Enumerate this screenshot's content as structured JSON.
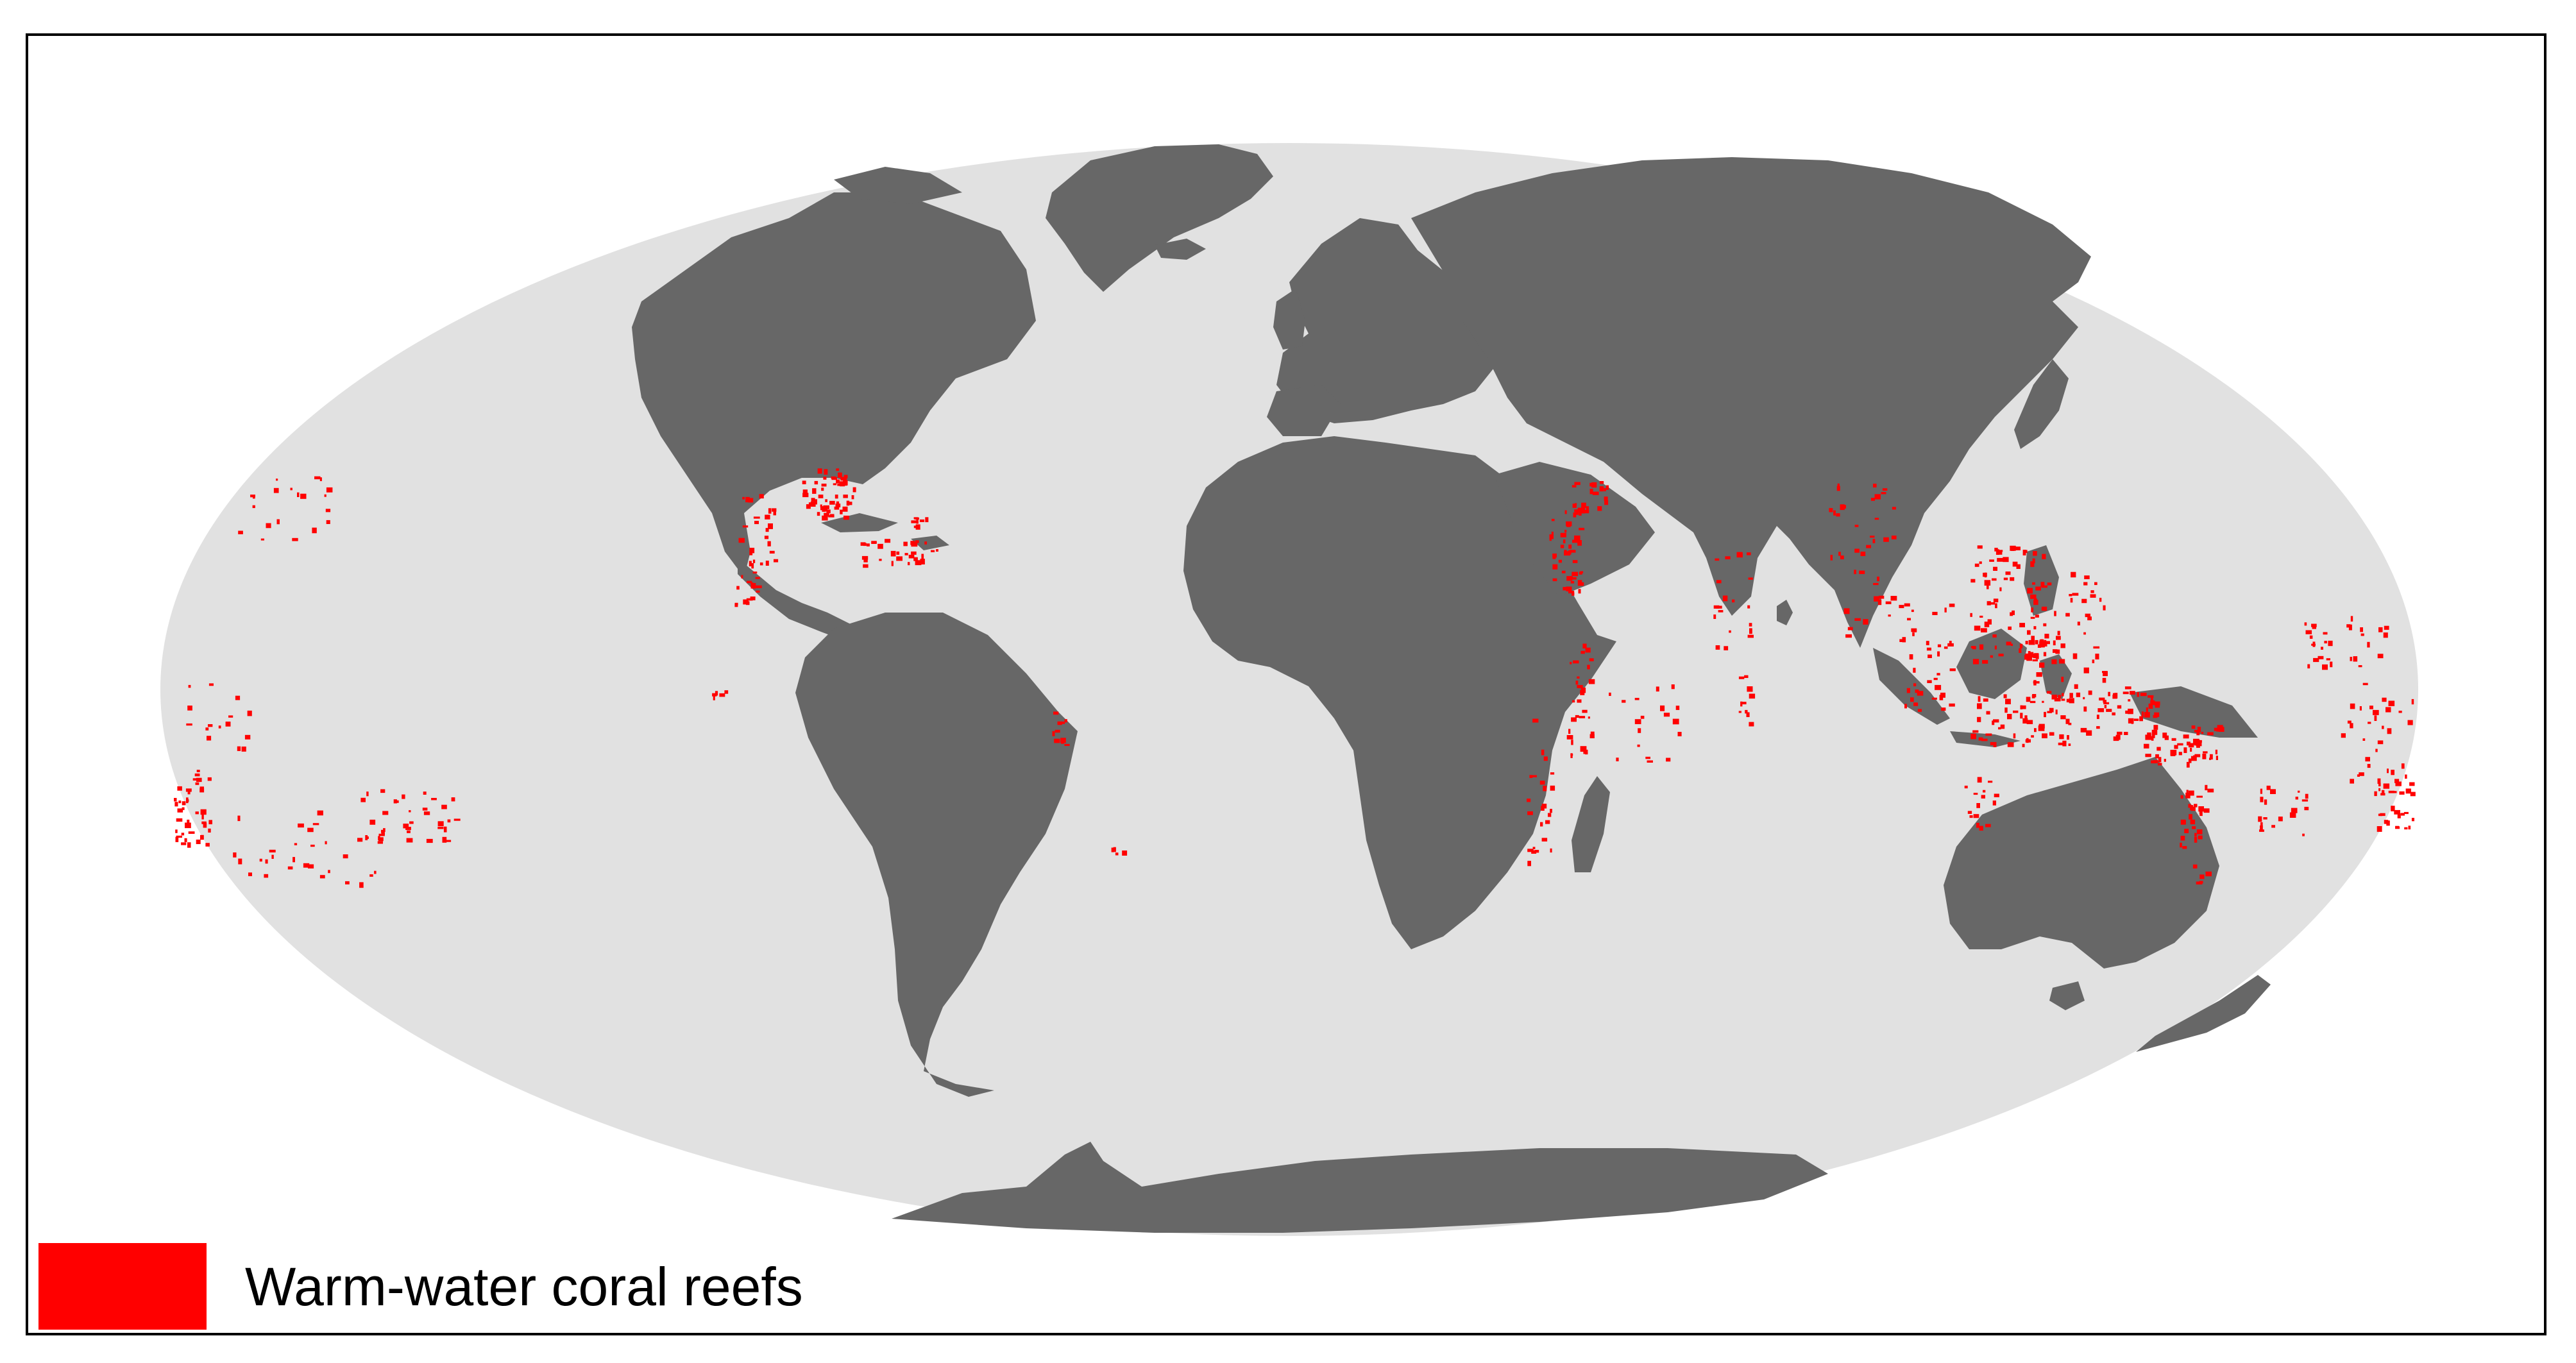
{
  "map": {
    "projection": "mollweide",
    "ocean_color": "#e1e1e1",
    "land_color": "#676767",
    "reef_color": "#ff0000",
    "frame_color": "#000000"
  },
  "legend": {
    "items": [
      {
        "label": "Warm-water coral reefs",
        "color": "#ff0000"
      }
    ]
  }
}
